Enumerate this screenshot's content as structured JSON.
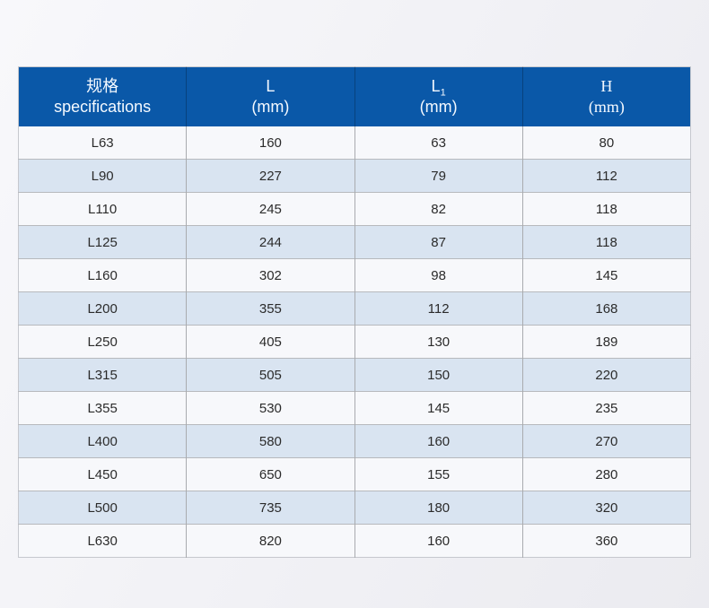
{
  "table": {
    "headers": [
      {
        "line1": "规格",
        "line2": "specifications"
      },
      {
        "line1": "L",
        "line2": "(mm)"
      },
      {
        "line1": "L",
        "sub": "1",
        "line2": "(mm)"
      },
      {
        "line1": "H",
        "line2": "(mm)"
      }
    ],
    "rows": [
      [
        "L63",
        "160",
        "63",
        "80"
      ],
      [
        "L90",
        "227",
        "79",
        "112"
      ],
      [
        "L110",
        "245",
        "82",
        "118"
      ],
      [
        "L125",
        "244",
        "87",
        "118"
      ],
      [
        "L160",
        "302",
        "98",
        "145"
      ],
      [
        "L200",
        "355",
        "112",
        "168"
      ],
      [
        "L250",
        "405",
        "130",
        "189"
      ],
      [
        "L315",
        "505",
        "150",
        "220"
      ],
      [
        "L355",
        "530",
        "145",
        "235"
      ],
      [
        "L400",
        "580",
        "160",
        "270"
      ],
      [
        "L450",
        "650",
        "155",
        "280"
      ],
      [
        "L500",
        "735",
        "180",
        "320"
      ],
      [
        "L630",
        "820",
        "160",
        "360"
      ]
    ]
  },
  "colors": {
    "header_bg": "#0a58a8",
    "row_base": "#f7f8fb",
    "row_alt": "#d9e4f1",
    "grid_line": "#a9abaf",
    "header_text": "#f4f9ff",
    "body_text": "#2b2b2b"
  },
  "chart_data": {
    "type": "table",
    "title": "",
    "columns": [
      "规格 specifications",
      "L (mm)",
      "L1 (mm)",
      "H (mm)"
    ],
    "rows": [
      [
        "L63",
        160,
        63,
        80
      ],
      [
        "L90",
        227,
        79,
        112
      ],
      [
        "L110",
        245,
        82,
        118
      ],
      [
        "L125",
        244,
        87,
        118
      ],
      [
        "L160",
        302,
        98,
        145
      ],
      [
        "L200",
        355,
        112,
        168
      ],
      [
        "L250",
        405,
        130,
        189
      ],
      [
        "L315",
        505,
        150,
        220
      ],
      [
        "L355",
        530,
        145,
        235
      ],
      [
        "L400",
        580,
        160,
        270
      ],
      [
        "L450",
        650,
        155,
        280
      ],
      [
        "L500",
        735,
        180,
        320
      ],
      [
        "L630",
        820,
        160,
        360
      ]
    ],
    "layout_hints": {
      "header_style": "blue banner, white text, two-line headers",
      "zebra_striping": "odd rows light, even rows pale blue",
      "grid": "on"
    }
  }
}
